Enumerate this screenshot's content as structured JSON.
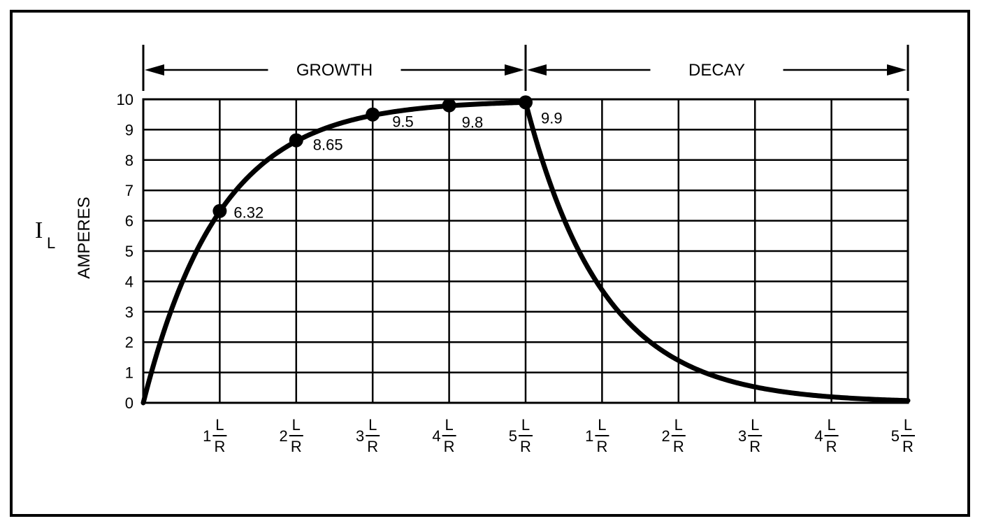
{
  "chart_data": {
    "type": "line",
    "title": "",
    "y_axis": {
      "symbol": "I",
      "subscript": "L",
      "label": "AMPERES",
      "ticks": [
        "0",
        "1",
        "2",
        "3",
        "4",
        "5",
        "6",
        "7",
        "8",
        "9",
        "10"
      ],
      "ylim": [
        0,
        10
      ]
    },
    "x_axis": {
      "ticks": [
        {
          "n": "1",
          "num": "L",
          "den": "R"
        },
        {
          "n": "2",
          "num": "L",
          "den": "R"
        },
        {
          "n": "3",
          "num": "L",
          "den": "R"
        },
        {
          "n": "4",
          "num": "L",
          "den": "R"
        },
        {
          "n": "5",
          "num": "L",
          "den": "R"
        },
        {
          "n": "1",
          "num": "L",
          "den": "R"
        },
        {
          "n": "2",
          "num": "L",
          "den": "R"
        },
        {
          "n": "3",
          "num": "L",
          "den": "R"
        },
        {
          "n": "4",
          "num": "L",
          "den": "R"
        },
        {
          "n": "5",
          "num": "L",
          "den": "R"
        }
      ],
      "xlim": [
        0,
        10
      ]
    },
    "sections": [
      {
        "label": "GROWTH",
        "range": [
          0,
          5
        ]
      },
      {
        "label": "DECAY",
        "range": [
          5,
          10
        ]
      }
    ],
    "grid": true,
    "series": [
      {
        "x": [
          0,
          1,
          2,
          3,
          4,
          5,
          6,
          7,
          8,
          9,
          10
        ],
        "values": [
          0,
          6.32,
          8.65,
          9.5,
          9.8,
          9.9,
          3.68,
          1.35,
          0.5,
          0.18,
          0.07
        ]
      }
    ],
    "marked_points": [
      {
        "x": 1,
        "y": 6.32,
        "label": "6.32"
      },
      {
        "x": 2,
        "y": 8.65,
        "label": "8.65"
      },
      {
        "x": 3,
        "y": 9.5,
        "label": "9.5"
      },
      {
        "x": 4,
        "y": 9.8,
        "label": "9.8"
      },
      {
        "x": 5,
        "y": 9.9,
        "label": "9.9"
      }
    ]
  }
}
